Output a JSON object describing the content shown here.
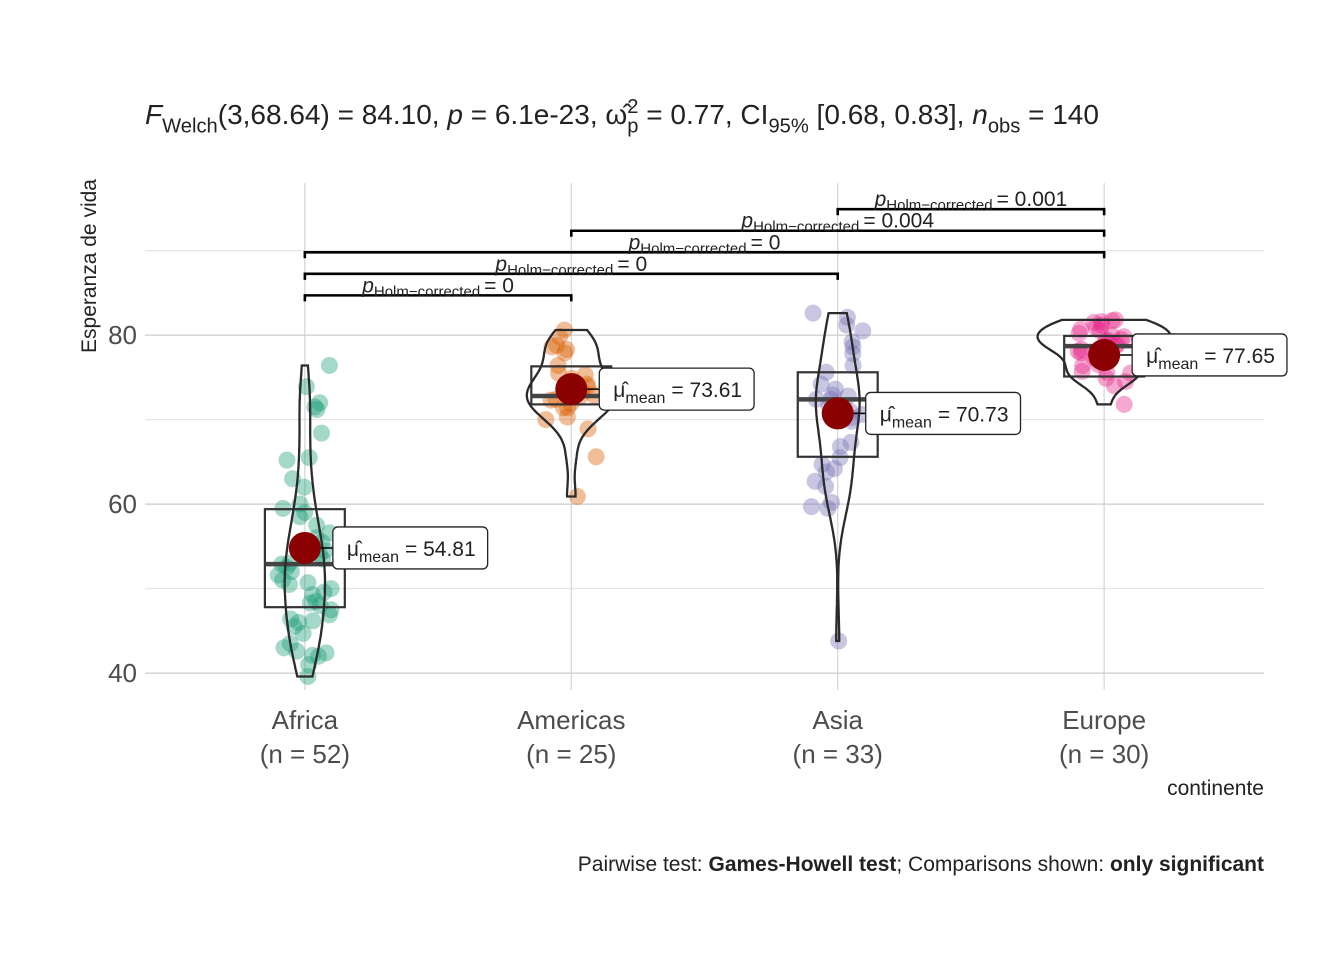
{
  "chart_data": {
    "type": "violin-box",
    "subtitle_parts": [
      {
        "text": "F",
        "style": "italic"
      },
      {
        "text": "Welch",
        "style": "sub"
      },
      {
        "text": "(3,68.64) = 84.10, ",
        "style": "normal"
      },
      {
        "text": "p",
        "style": "italic"
      },
      {
        "text": " = 6.1e-23, ",
        "style": "normal"
      },
      {
        "text": "ω̂",
        "style": "normal"
      },
      {
        "text": "2",
        "style": "sup"
      },
      {
        "text": "p",
        "style": "sub-under"
      },
      {
        "text": " = 0.77, CI",
        "style": "normal"
      },
      {
        "text": "95%",
        "style": "sub"
      },
      {
        "text": " [0.68, 0.83], ",
        "style": "normal"
      },
      {
        "text": "n",
        "style": "italic"
      },
      {
        "text": "obs",
        "style": "sub"
      },
      {
        "text": " = 140",
        "style": "normal"
      }
    ],
    "y_label": "Esperanza de vida",
    "x_label": "continente",
    "caption_parts": [
      {
        "text": "Pairwise test: ",
        "style": "normal"
      },
      {
        "text": "Games-Howell test",
        "style": "bold"
      },
      {
        "text": "; Comparisons shown: ",
        "style": "normal"
      },
      {
        "text": "only significant",
        "style": "bold"
      }
    ],
    "categories": [
      "Africa",
      "Americas",
      "Asia",
      "Europe"
    ],
    "category_n_labels": [
      "(n = 52)",
      "(n = 25)",
      "(n = 33)",
      "(n = 30)"
    ],
    "ylim": [
      38,
      98
    ],
    "yticks": [
      40,
      60,
      80
    ],
    "minor_yticks": [
      50,
      70,
      90
    ],
    "grid": true,
    "mean_color": "#8B0000",
    "mean_symbol": "μ̂",
    "mean_subscript": "mean",
    "series": [
      {
        "color": "#1B9E77",
        "mean": 54.81,
        "mean_label": "= 54.81",
        "box": {
          "q1": 47.8,
          "median": 52.9,
          "q3": 59.4
        },
        "values": [
          76.4,
          73.9,
          72,
          71.5,
          71.2,
          68.4,
          65.5,
          65.2,
          63,
          62,
          60,
          59.5,
          59,
          58.5,
          57.5,
          56.6,
          56,
          55.5,
          55,
          54.5,
          54,
          53.5,
          53,
          52.9,
          52.5,
          52,
          51.6,
          51,
          50.5,
          50,
          49.6,
          49.3,
          48.5,
          48.3,
          48,
          47.5,
          46.9,
          46.4,
          46,
          45.5,
          44.7,
          43.5,
          43,
          42.6,
          42.4,
          42.1,
          42,
          41,
          39.6,
          46.2,
          50.7,
          54.9
        ]
      },
      {
        "color": "#D95F02",
        "mean": 73.61,
        "mean_label": "= 73.61",
        "box": {
          "q1": 71.8,
          "median": 72.8,
          "q3": 76.3
        },
        "values": [
          80.6,
          79.8,
          78.8,
          78.6,
          78.3,
          77.9,
          76.4,
          75.5,
          75.3,
          74.9,
          74.2,
          73.9,
          73.4,
          72.9,
          72.8,
          72.4,
          72.3,
          71.9,
          71.4,
          71.4,
          70.3,
          70,
          68.9,
          65.6,
          60.9
        ]
      },
      {
        "color": "#7570B3",
        "mean": 70.73,
        "mean_label": "= 70.73",
        "box": {
          "q1": 65.6,
          "median": 72.4,
          "q3": 75.6
        },
        "values": [
          82.6,
          82.1,
          81.2,
          80.5,
          79.2,
          78.6,
          77.8,
          76.4,
          75.6,
          74.2,
          73.6,
          72.9,
          72.4,
          72.4,
          71.7,
          71.4,
          71,
          70.6,
          70.2,
          69.8,
          67.3,
          66.8,
          65.5,
          64.7,
          64.2,
          63.8,
          62.7,
          62.1,
          60.2,
          59.7,
          59.5,
          43.8,
          72.8
        ]
      },
      {
        "color": "#E7298A",
        "mean": 77.65,
        "mean_label": "= 77.65",
        "box": {
          "q1": 75.1,
          "median": 78.7,
          "q3": 79.9
        },
        "values": [
          81.8,
          81.7,
          81.6,
          81.5,
          81.2,
          80.9,
          80.7,
          80.5,
          80.2,
          80,
          79.8,
          79.5,
          79.4,
          79.3,
          79,
          78.9,
          78.7,
          78.3,
          78.1,
          77.9,
          77.3,
          76.5,
          76.4,
          75.7,
          75.6,
          75.5,
          74.9,
          74.5,
          74.0,
          71.8
        ]
      }
    ],
    "p_symbol": "p",
    "p_subscript": "Holm−corrected",
    "comparisons": [
      {
        "pair": [
          "Africa",
          "Americas"
        ],
        "label": "= 0"
      },
      {
        "pair": [
          "Africa",
          "Asia"
        ],
        "label": "= 0"
      },
      {
        "pair": [
          "Africa",
          "Europe"
        ],
        "label": "= 0"
      },
      {
        "pair": [
          "Americas",
          "Europe"
        ],
        "label": "= 0.004"
      },
      {
        "pair": [
          "Asia",
          "Europe"
        ],
        "label": "= 0.001"
      }
    ]
  }
}
